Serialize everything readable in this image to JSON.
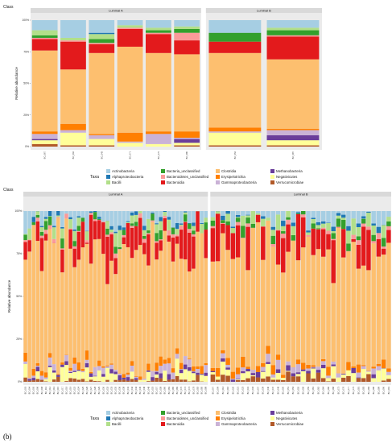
{
  "figure_label": "(b)",
  "colors": {
    "Actinobacteria": "#a6cee3",
    "Alphaproteobacteria": "#1f78b4",
    "Bacilli": "#b2df8a",
    "Bacteria_unclassified": "#33a02c",
    "Bacteroidetes_unclassified": "#fb9a99",
    "Bacteroidia": "#e31a1c",
    "Clostridia": "#fdbf6f",
    "Erysipelotrichia": "#ff7f00",
    "Gammaproteobacteria": "#cab2d6",
    "Methanobacteria": "#6a3d9a",
    "Negativicutes": "#ffff99",
    "Verrucomicrobiae": "#b15928"
  },
  "chart_data": [
    {
      "type": "bar",
      "stacked": true,
      "title": "Class",
      "xlabel": "",
      "ylabel": "Relative abundance",
      "ylim": [
        0,
        1
      ],
      "yticks": [
        "0%",
        "25%",
        "50%",
        "75%",
        "100%"
      ],
      "facets": [
        "Luminal A",
        "Luminal B"
      ],
      "legend_title": "Taxa",
      "legend_position": "bottom",
      "taxa": [
        "Actinobacteria",
        "Alphaproteobacteria",
        "Bacilli",
        "Bacteria_unclassified",
        "Bacteroidetes_unclassified",
        "Bacteroidia",
        "Clostridia",
        "Erysipelotrichia",
        "Gammaproteobacteria",
        "Methanobacteria",
        "Negativicutes",
        "Verrucomicrobiae"
      ],
      "stack_order": [
        "Verrucomicrobiae",
        "Negativicutes",
        "Methanobacteria",
        "Gammaproteobacteria",
        "Erysipelotrichia",
        "Clostridia",
        "Bacteroidia",
        "Bacteroidetes_unclassified",
        "Bacteria_unclassified",
        "Bacilli",
        "Alphaproteobacteria",
        "Actinobacteria"
      ],
      "samples": [
        {
          "label": "BC_067",
          "facet": "Luminal A",
          "values": {
            "Actinobacteria": 0.08,
            "Alphaproteobacteria": 0.0,
            "Bacilli": 0.04,
            "Bacteria_unclassified": 0.02,
            "Bacteroidetes_unclassified": 0.01,
            "Bacteroidia": 0.09,
            "Clostridia": 0.64,
            "Erysipelotrichia": 0.02,
            "Gammaproteobacteria": 0.04,
            "Methanobacteria": 0.01,
            "Negativicutes": 0.03,
            "Verrucomicrobiae": 0.02
          }
        },
        {
          "label": "BC_092",
          "facet": "Luminal A",
          "values": {
            "Actinobacteria": 0.14,
            "Alphaproteobacteria": 0.0,
            "Bacilli": 0.02,
            "Bacteria_unclassified": 0.0,
            "Bacteroidetes_unclassified": 0.01,
            "Bacteroidia": 0.22,
            "Clostridia": 0.43,
            "Erysipelotrichia": 0.05,
            "Gammaproteobacteria": 0.02,
            "Methanobacteria": 0.0,
            "Negativicutes": 0.1,
            "Verrucomicrobiae": 0.01
          }
        },
        {
          "label": "BC_043",
          "facet": "Luminal A",
          "values": {
            "Actinobacteria": 0.1,
            "Alphaproteobacteria": 0.01,
            "Bacilli": 0.04,
            "Bacteria_unclassified": 0.03,
            "Bacteroidetes_unclassified": 0.01,
            "Bacteroidia": 0.07,
            "Clostridia": 0.64,
            "Erysipelotrichia": 0.01,
            "Gammaproteobacteria": 0.03,
            "Methanobacteria": 0.0,
            "Negativicutes": 0.05,
            "Verrucomicrobiae": 0.01
          }
        },
        {
          "label": "BC_071",
          "facet": "Luminal A",
          "values": {
            "Actinobacteria": 0.04,
            "Alphaproteobacteria": 0.0,
            "Bacilli": 0.02,
            "Bacteria_unclassified": 0.0,
            "Bacteroidetes_unclassified": 0.01,
            "Bacteroidia": 0.14,
            "Clostridia": 0.68,
            "Erysipelotrichia": 0.07,
            "Gammaproteobacteria": 0.01,
            "Methanobacteria": 0.0,
            "Negativicutes": 0.03,
            "Verrucomicrobiae": 0.0
          }
        },
        {
          "label": "BC_075",
          "facet": "Luminal A",
          "values": {
            "Actinobacteria": 0.06,
            "Alphaproteobacteria": 0.0,
            "Bacilli": 0.02,
            "Bacteria_unclassified": 0.02,
            "Bacteroidetes_unclassified": 0.01,
            "Bacteroidia": 0.15,
            "Clostridia": 0.62,
            "Erysipelotrichia": 0.02,
            "Gammaproteobacteria": 0.08,
            "Methanobacteria": 0.0,
            "Negativicutes": 0.02,
            "Verrucomicrobiae": 0.0
          }
        },
        {
          "label": "BC_080",
          "facet": "Luminal A",
          "values": {
            "Actinobacteria": 0.05,
            "Alphaproteobacteria": 0.0,
            "Bacilli": 0.02,
            "Bacteria_unclassified": 0.03,
            "Bacteroidetes_unclassified": 0.06,
            "Bacteroidia": 0.11,
            "Clostridia": 0.61,
            "Erysipelotrichia": 0.05,
            "Gammaproteobacteria": 0.01,
            "Methanobacteria": 0.03,
            "Negativicutes": 0.02,
            "Verrucomicrobiae": 0.01
          }
        },
        {
          "label": "BC_052",
          "facet": "Luminal B",
          "values": {
            "Actinobacteria": 0.1,
            "Alphaproteobacteria": 0.0,
            "Bacilli": 0.0,
            "Bacteria_unclassified": 0.07,
            "Bacteroidetes_unclassified": 0.0,
            "Bacteroidia": 0.09,
            "Clostridia": 0.59,
            "Erysipelotrichia": 0.03,
            "Gammaproteobacteria": 0.01,
            "Methanobacteria": 0.0,
            "Negativicutes": 0.1,
            "Verrucomicrobiae": 0.01
          }
        },
        {
          "label": "BC_087",
          "facet": "Luminal B",
          "values": {
            "Actinobacteria": 0.06,
            "Alphaproteobacteria": 0.0,
            "Bacilli": 0.02,
            "Bacteria_unclassified": 0.04,
            "Bacteroidetes_unclassified": 0.01,
            "Bacteroidia": 0.18,
            "Clostridia": 0.55,
            "Erysipelotrichia": 0.01,
            "Gammaproteobacteria": 0.04,
            "Methanobacteria": 0.04,
            "Negativicutes": 0.04,
            "Verrucomicrobiae": 0.01
          }
        }
      ]
    },
    {
      "type": "bar",
      "stacked": true,
      "title": "Class",
      "xlabel": "",
      "ylabel": "Relative abundance",
      "ylim": [
        0,
        1
      ],
      "yticks": [
        "0%",
        "25%",
        "50%",
        "75%",
        "100%"
      ],
      "facets": [
        "Luminal A",
        "Luminal B"
      ],
      "legend_title": "Taxa",
      "legend_position": "bottom",
      "taxa": [
        "Actinobacteria",
        "Alphaproteobacteria",
        "Bacilli",
        "Bacteria_unclassified",
        "Bacteroidetes_unclassified",
        "Bacteroidia",
        "Clostridia",
        "Erysipelotrichia",
        "Gammaproteobacteria",
        "Methanobacteria",
        "Negativicutes",
        "Verrucomicrobiae"
      ],
      "stack_order": [
        "Verrucomicrobiae",
        "Negativicutes",
        "Methanobacteria",
        "Gammaproteobacteria",
        "Erysipelotrichia",
        "Clostridia",
        "Bacteroidia",
        "Bacteroidetes_unclassified",
        "Bacteria_unclassified",
        "Bacilli",
        "Alphaproteobacteria",
        "Actinobacteria"
      ],
      "facet_samples": {
        "Luminal A": [
          "BC_003",
          "BC_004",
          "BC_005",
          "BC_006",
          "BC_008",
          "BC_011",
          "BC_012",
          "BC_013",
          "BC_015",
          "BC_017",
          "BC_018",
          "BC_019",
          "BC_022",
          "BC_024",
          "BC_025",
          "BC_026",
          "BC_027",
          "BC_028",
          "BC_029",
          "BC_030",
          "BC_032",
          "BC_033",
          "BC_035",
          "BC_036",
          "BC_038",
          "BC_041",
          "BC_042",
          "BC_044",
          "BC_045",
          "BC_046",
          "BC_048",
          "BC_053",
          "BC_057",
          "BC_058",
          "BC_060",
          "BC_063",
          "BC_065",
          "BC_069",
          "BC_070",
          "BC_072",
          "BC_074",
          "BC_078",
          "BC_082",
          "BC_085",
          "BC_088"
        ],
        "Luminal B": [
          "BC_007",
          "BC_009",
          "BC_014",
          "BC_016",
          "BC_020",
          "BC_021",
          "BC_023",
          "BC_031",
          "BC_034",
          "BC_037",
          "BC_039",
          "BC_040",
          "BC_047",
          "BC_049",
          "BC_050",
          "BC_051",
          "BC_054",
          "BC_055",
          "BC_056",
          "BC_059",
          "BC_061",
          "BC_062",
          "BC_064",
          "BC_066",
          "BC_068",
          "BC_073",
          "BC_076",
          "BC_077",
          "BC_079",
          "BC_081",
          "BC_083",
          "BC_084",
          "BC_086",
          "BC_089",
          "BC_090",
          "BC_091"
        ]
      },
      "summary_by_facet": {
        "Luminal A": {
          "Actinobacteria": 0.05,
          "Alphaproteobacteria": 0.01,
          "Bacilli": 0.03,
          "Bacteria_unclassified": 0.02,
          "Bacteroidetes_unclassified": 0.01,
          "Bacteroidia": 0.14,
          "Clostridia": 0.65,
          "Erysipelotrichia": 0.02,
          "Gammaproteobacteria": 0.02,
          "Methanobacteria": 0.01,
          "Negativicutes": 0.03,
          "Verrucomicrobiae": 0.01
        },
        "Luminal B": {
          "Actinobacteria": 0.04,
          "Alphaproteobacteria": 0.01,
          "Bacilli": 0.03,
          "Bacteria_unclassified": 0.02,
          "Bacteroidetes_unclassified": 0.01,
          "Bacteroidia": 0.12,
          "Clostridia": 0.67,
          "Erysipelotrichia": 0.02,
          "Gammaproteobacteria": 0.02,
          "Methanobacteria": 0.01,
          "Negativicutes": 0.03,
          "Verrucomicrobiae": 0.02
        }
      }
    }
  ]
}
